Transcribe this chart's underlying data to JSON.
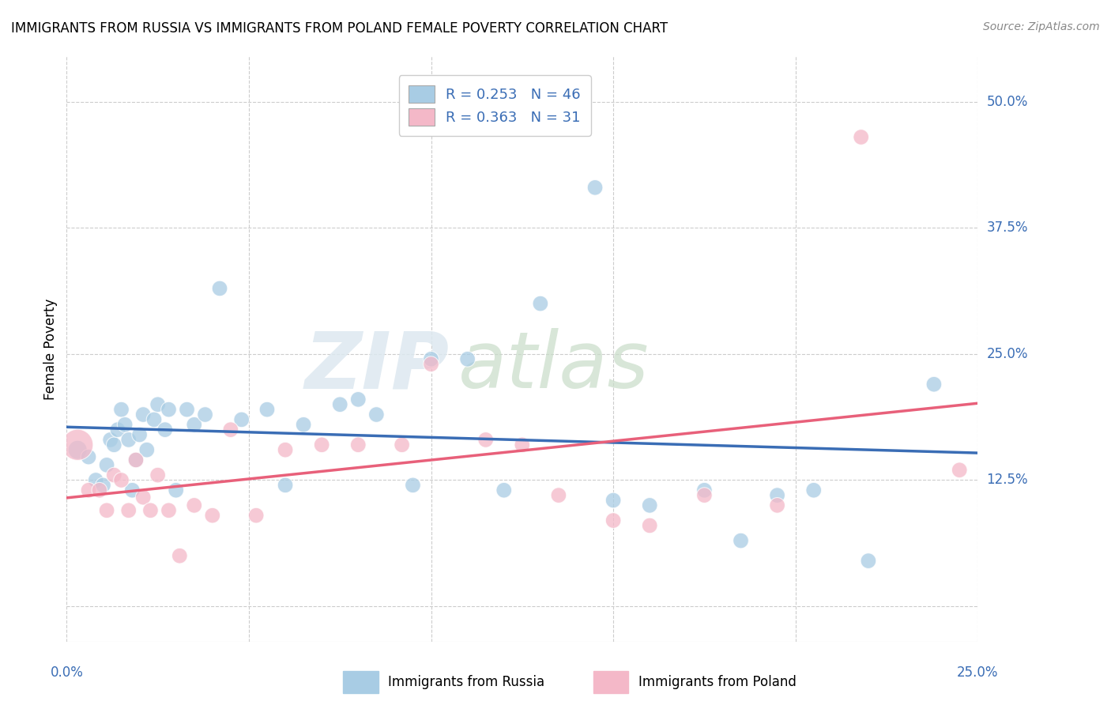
{
  "title": "IMMIGRANTS FROM RUSSIA VS IMMIGRANTS FROM POLAND FEMALE POVERTY CORRELATION CHART",
  "source": "Source: ZipAtlas.com",
  "ylabel": "Female Poverty",
  "yticks": [
    0.0,
    0.125,
    0.25,
    0.375,
    0.5
  ],
  "ytick_labels": [
    "",
    "12.5%",
    "25.0%",
    "37.5%",
    "50.0%"
  ],
  "xlim": [
    0.0,
    0.25
  ],
  "ylim": [
    -0.035,
    0.545
  ],
  "russia_R": 0.253,
  "russia_N": 46,
  "poland_R": 0.363,
  "poland_N": 31,
  "russia_color": "#a8cce4",
  "poland_color": "#f4b8c8",
  "russia_line_color": "#3a6db5",
  "poland_line_color": "#e8607a",
  "background_color": "#ffffff",
  "grid_color": "#cccccc",
  "watermark_zip": "ZIP",
  "watermark_atlas": "atlas",
  "russia_x": [
    0.003,
    0.006,
    0.008,
    0.01,
    0.011,
    0.012,
    0.013,
    0.014,
    0.015,
    0.016,
    0.017,
    0.018,
    0.019,
    0.02,
    0.021,
    0.022,
    0.024,
    0.025,
    0.027,
    0.028,
    0.03,
    0.033,
    0.035,
    0.038,
    0.042,
    0.048,
    0.055,
    0.06,
    0.065,
    0.075,
    0.08,
    0.085,
    0.095,
    0.1,
    0.11,
    0.12,
    0.13,
    0.145,
    0.15,
    0.16,
    0.175,
    0.185,
    0.195,
    0.205,
    0.22,
    0.238
  ],
  "russia_y": [
    0.155,
    0.148,
    0.125,
    0.12,
    0.14,
    0.165,
    0.16,
    0.175,
    0.195,
    0.18,
    0.165,
    0.115,
    0.145,
    0.17,
    0.19,
    0.155,
    0.185,
    0.2,
    0.175,
    0.195,
    0.115,
    0.195,
    0.18,
    0.19,
    0.315,
    0.185,
    0.195,
    0.12,
    0.18,
    0.2,
    0.205,
    0.19,
    0.12,
    0.245,
    0.245,
    0.115,
    0.3,
    0.415,
    0.105,
    0.1,
    0.115,
    0.065,
    0.11,
    0.115,
    0.045,
    0.22
  ],
  "poland_x": [
    0.003,
    0.006,
    0.009,
    0.011,
    0.013,
    0.015,
    0.017,
    0.019,
    0.021,
    0.023,
    0.025,
    0.028,
    0.031,
    0.035,
    0.04,
    0.045,
    0.052,
    0.06,
    0.07,
    0.08,
    0.092,
    0.1,
    0.115,
    0.125,
    0.135,
    0.15,
    0.16,
    0.175,
    0.195,
    0.218,
    0.245
  ],
  "poland_y": [
    0.16,
    0.115,
    0.115,
    0.095,
    0.13,
    0.125,
    0.095,
    0.145,
    0.108,
    0.095,
    0.13,
    0.095,
    0.05,
    0.1,
    0.09,
    0.175,
    0.09,
    0.155,
    0.16,
    0.16,
    0.16,
    0.24,
    0.165,
    0.16,
    0.11,
    0.085,
    0.08,
    0.11,
    0.1,
    0.465,
    0.135
  ],
  "russia_sizes": [
    300,
    200,
    200,
    200,
    200,
    200,
    200,
    200,
    200,
    200,
    200,
    200,
    200,
    200,
    200,
    200,
    200,
    200,
    200,
    200,
    200,
    200,
    200,
    200,
    200,
    200,
    200,
    200,
    200,
    200,
    200,
    200,
    200,
    200,
    200,
    200,
    200,
    200,
    200,
    200,
    200,
    200,
    200,
    200,
    200,
    200
  ],
  "poland_sizes": [
    800,
    200,
    200,
    200,
    200,
    200,
    200,
    200,
    200,
    200,
    200,
    200,
    200,
    200,
    200,
    200,
    200,
    200,
    200,
    200,
    200,
    200,
    200,
    200,
    200,
    200,
    200,
    200,
    200,
    200,
    200
  ]
}
